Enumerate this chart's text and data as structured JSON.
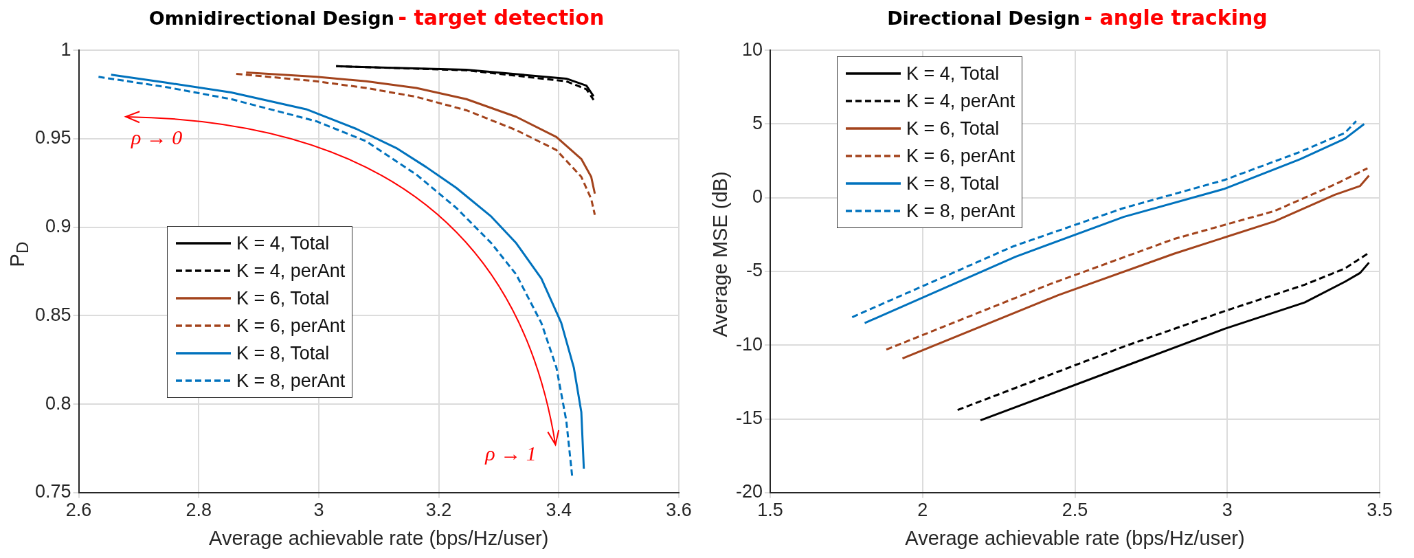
{
  "chart_data": [
    {
      "type": "line",
      "title": "Omnidirectional Design",
      "subtitle": "- target detection",
      "xlabel": "Average achievable rate (bps/Hz/user)",
      "ylabel": "P$_{D}$",
      "xlim": [
        2.6,
        3.6
      ],
      "xticks": [
        2.6,
        2.8,
        3,
        3.2,
        3.4,
        3.6
      ],
      "ylim": [
        0.75,
        1
      ],
      "yticks": [
        0.75,
        0.8,
        0.85,
        0.9,
        0.95,
        1
      ],
      "grid": true,
      "legend": "left",
      "marker": "none",
      "annotations": [
        "ρ → 0",
        "ρ → 1"
      ],
      "series": [
        {
          "name": "K = 4, Total",
          "color": "#000000",
          "line_style": "solid",
          "x": [
            3.029,
            3.246,
            3.4125,
            3.446,
            3.458
          ],
          "values": [
            0.991,
            0.989,
            0.984,
            0.98,
            0.974
          ]
        },
        {
          "name": "K = 4, perAnt",
          "color": "#000000",
          "line_style": "dashed",
          "x": [
            3.029,
            3.246,
            3.4125,
            3.446,
            3.458
          ],
          "values": [
            0.991,
            0.9887,
            0.9825,
            0.978,
            0.972
          ]
        },
        {
          "name": "K = 6, Total",
          "color": "#a3431c",
          "line_style": "solid",
          "x": [
            2.879,
            2.996,
            3.079,
            3.1625,
            3.246,
            3.329,
            3.396,
            3.4375,
            3.454,
            3.46
          ],
          "values": [
            0.9875,
            0.985,
            0.9825,
            0.9787,
            0.9724,
            0.9624,
            0.951,
            0.9386,
            0.9285,
            0.919
          ]
        },
        {
          "name": "K = 6, perAnt",
          "color": "#a3431c",
          "line_style": "dashed",
          "x": [
            2.8625,
            2.996,
            3.079,
            3.1625,
            3.246,
            3.329,
            3.396,
            3.4375,
            3.454,
            3.46
          ],
          "values": [
            0.9867,
            0.9825,
            0.9787,
            0.9737,
            0.9661,
            0.9549,
            0.9436,
            0.9285,
            0.916,
            0.907
          ]
        },
        {
          "name": "K = 8, Total",
          "color": "#0072bd",
          "line_style": "solid",
          "x": [
            2.654,
            2.746,
            2.854,
            2.979,
            3.0625,
            3.129,
            3.179,
            3.229,
            3.2875,
            3.329,
            3.371,
            3.404,
            3.425,
            3.4375,
            3.4417
          ],
          "values": [
            0.9862,
            0.9817,
            0.9762,
            0.9667,
            0.9556,
            0.9448,
            0.934,
            0.9223,
            0.906,
            0.891,
            0.871,
            0.846,
            0.8207,
            0.7956,
            0.7635
          ]
        },
        {
          "name": "K = 8, perAnt",
          "color": "#0072bd",
          "line_style": "dashed",
          "x": [
            2.633,
            2.746,
            2.854,
            2.996,
            3.079,
            3.1625,
            3.229,
            3.2875,
            3.329,
            3.371,
            3.396,
            3.4125,
            3.4225
          ],
          "values": [
            0.985,
            0.9792,
            0.9724,
            0.9599,
            0.9486,
            0.9298,
            0.911,
            0.891,
            0.8733,
            0.8458,
            0.8207,
            0.7906,
            0.7585
          ]
        }
      ]
    },
    {
      "type": "line",
      "title": "Directional Design",
      "subtitle": "- angle tracking",
      "xlabel": "Average achievable rate (bps/Hz/user)",
      "ylabel": "Average MSE (dB)",
      "xlim": [
        1.5,
        3.5
      ],
      "xticks": [
        1.5,
        2,
        2.5,
        3,
        3.5
      ],
      "ylim": [
        -20,
        10
      ],
      "yticks": [
        -20,
        -15,
        -10,
        -5,
        0,
        5,
        10
      ],
      "grid": true,
      "legend": "top left",
      "marker": "none",
      "series": [
        {
          "name": "K = 4, Total",
          "color": "#000000",
          "line_style": "solid",
          "x": [
            2.19,
            2.693,
            2.99,
            3.254,
            3.386,
            3.436,
            3.465
          ],
          "values": [
            -15.1,
            -11.2,
            -8.9,
            -7.1,
            -5.7,
            -5.1,
            -4.4
          ]
        },
        {
          "name": "K = 4, perAnt",
          "color": "#000000",
          "line_style": "dashed",
          "x": [
            2.115,
            2.66,
            2.99,
            3.254,
            3.386,
            3.46
          ],
          "values": [
            -14.4,
            -10.1,
            -7.7,
            -5.9,
            -4.8,
            -3.8
          ]
        },
        {
          "name": "K = 6, Total",
          "color": "#a3431c",
          "line_style": "solid",
          "x": [
            1.934,
            2.446,
            2.825,
            3.155,
            3.353,
            3.436,
            3.465
          ],
          "values": [
            -10.9,
            -6.6,
            -3.8,
            -1.6,
            0.2,
            0.8,
            1.5
          ]
        },
        {
          "name": "K = 6, perAnt",
          "color": "#a3431c",
          "line_style": "dashed",
          "x": [
            1.881,
            2.413,
            2.825,
            3.155,
            3.353,
            3.46
          ],
          "values": [
            -10.3,
            -5.9,
            -2.8,
            -0.9,
            0.9,
            2
          ]
        },
        {
          "name": "K = 8, Total",
          "color": "#0072bd",
          "line_style": "solid",
          "x": [
            1.81,
            2.305,
            2.66,
            2.99,
            3.238,
            3.386,
            3.449
          ],
          "values": [
            -8.5,
            -4,
            -1.3,
            0.6,
            2.6,
            4,
            5
          ]
        },
        {
          "name": "K = 8, perAnt",
          "color": "#0072bd",
          "line_style": "dashed",
          "x": [
            1.769,
            2.297,
            2.66,
            2.99,
            3.238,
            3.386,
            3.423
          ],
          "values": [
            -8.1,
            -3.3,
            -0.7,
            1.2,
            3.1,
            4.4,
            5.2
          ]
        }
      ]
    }
  ]
}
